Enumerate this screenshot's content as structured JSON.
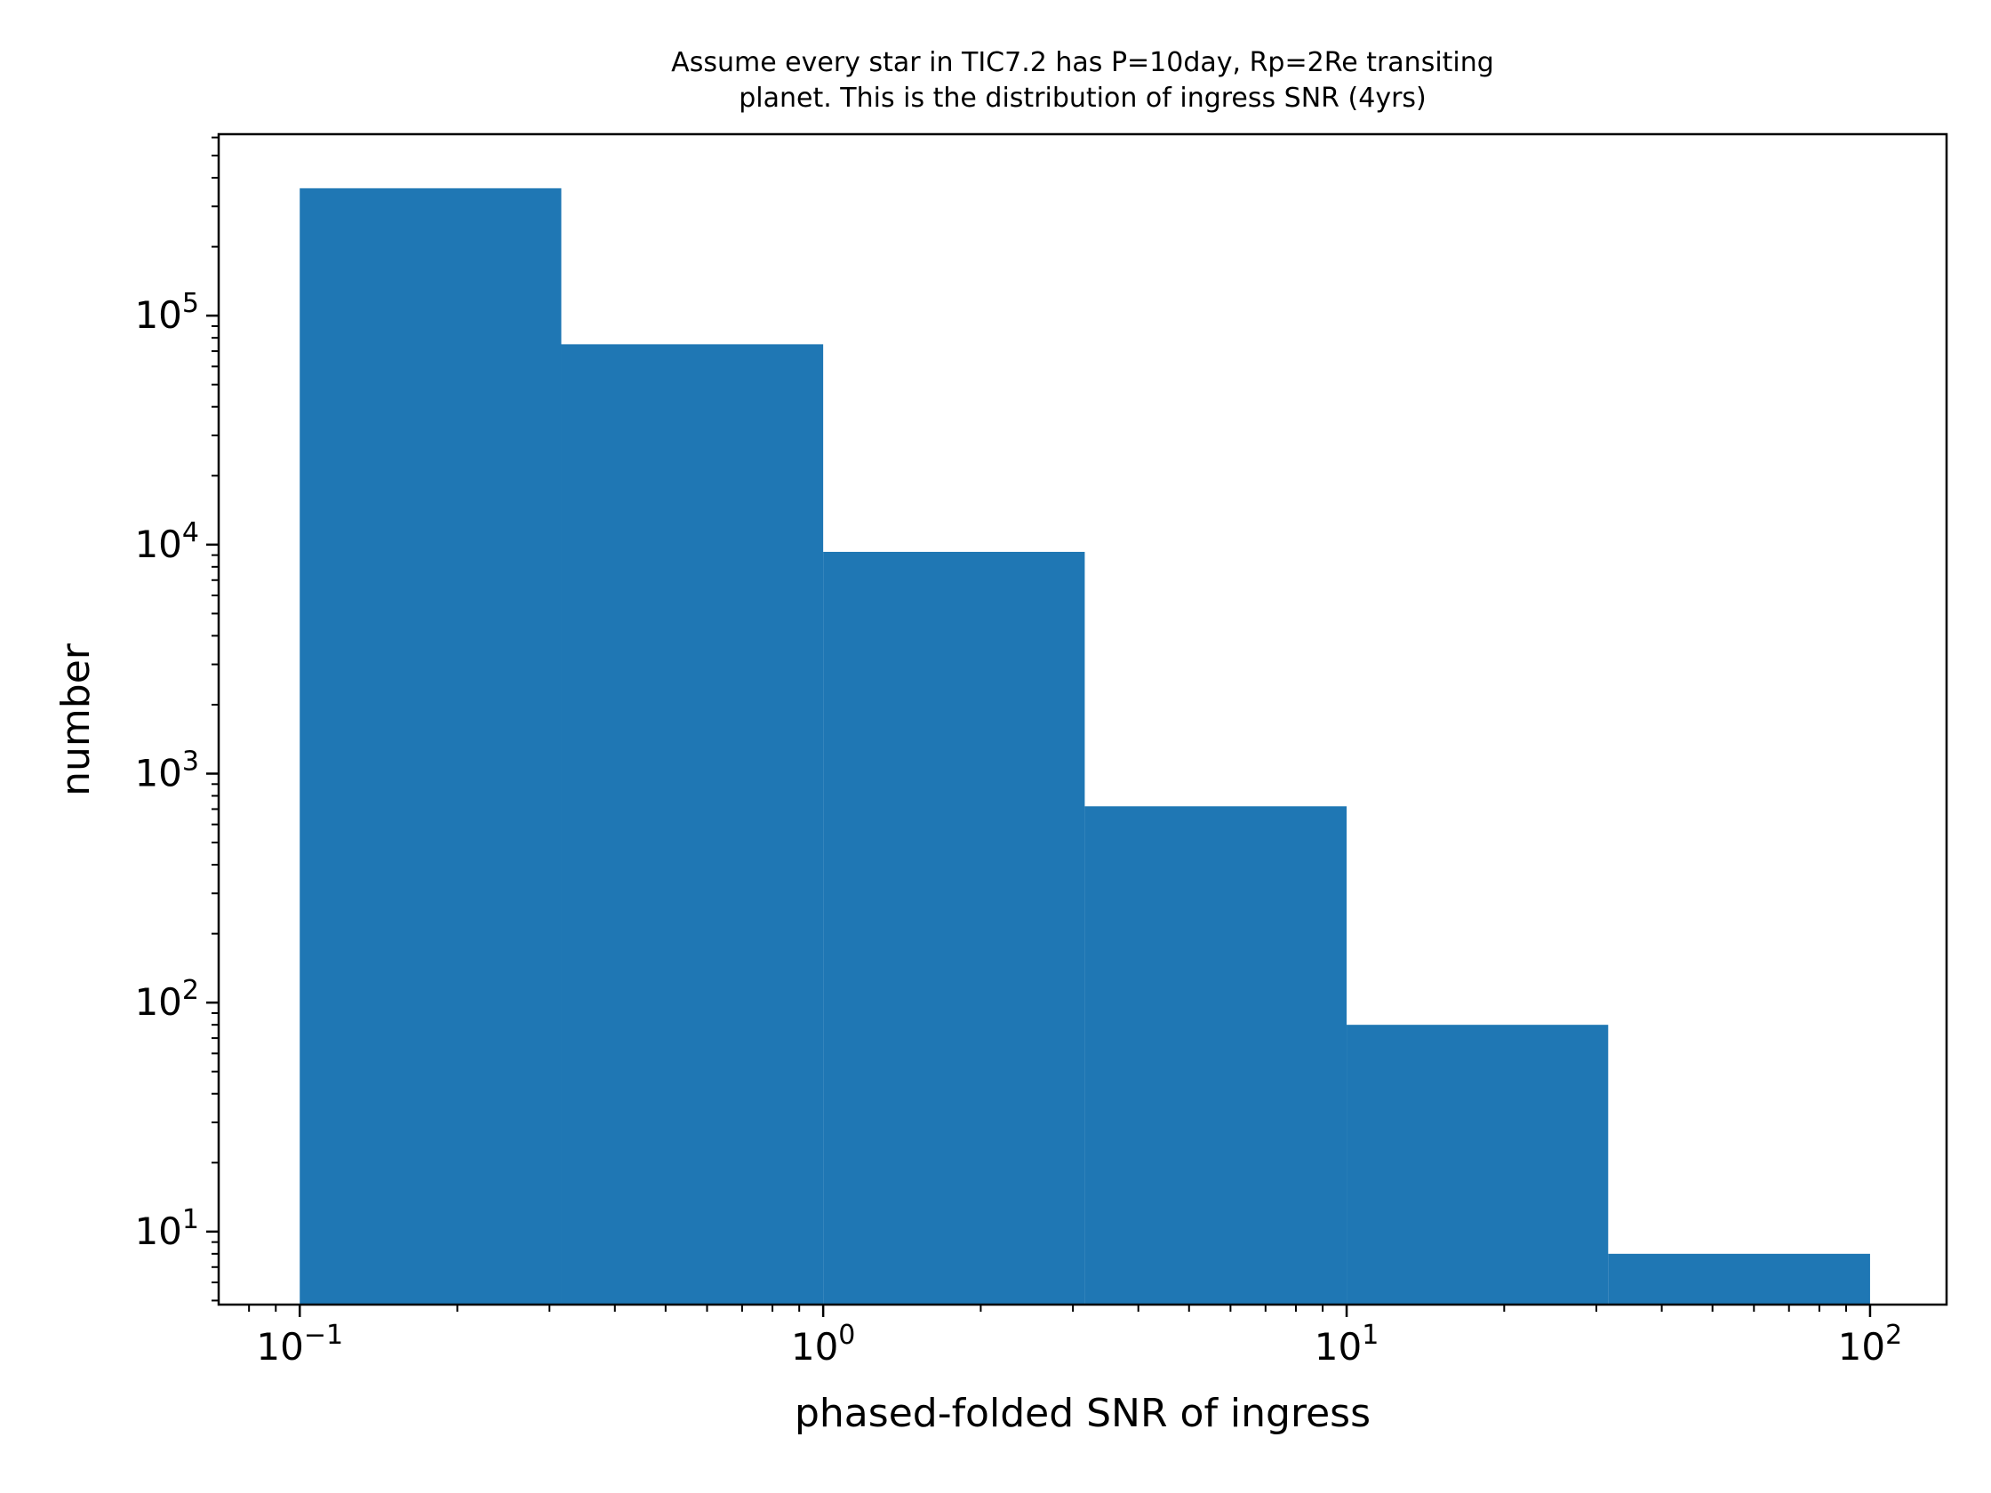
{
  "chart_data": {
    "type": "bar",
    "title_lines": [
      "Assume every star in TIC7.2 has P=10day, Rp=2Re transiting",
      "planet. This is the distribution of ingress SNR (4yrs)"
    ],
    "xlabel": "phased-folded SNR of ingress",
    "ylabel": "number",
    "x_scale": "log",
    "y_scale": "log",
    "xlim": [
      0.07,
      140
    ],
    "ylim": [
      4.8,
      620000
    ],
    "grid": false,
    "bar_color": "#1f77b4",
    "x_ticks": [
      {
        "value": 0.1,
        "base": "10",
        "exp": "−1"
      },
      {
        "value": 1,
        "base": "10",
        "exp": "0"
      },
      {
        "value": 10,
        "base": "10",
        "exp": "1"
      },
      {
        "value": 100,
        "base": "10",
        "exp": "2"
      }
    ],
    "y_ticks": [
      {
        "value": 10,
        "base": "10",
        "exp": "1"
      },
      {
        "value": 100,
        "base": "10",
        "exp": "2"
      },
      {
        "value": 1000,
        "base": "10",
        "exp": "3"
      },
      {
        "value": 10000,
        "base": "10",
        "exp": "4"
      },
      {
        "value": 100000,
        "base": "10",
        "exp": "5"
      }
    ],
    "bins": [
      {
        "x0": 0.1,
        "x1": 0.316,
        "count": 360000
      },
      {
        "x0": 0.316,
        "x1": 1.0,
        "count": 75000
      },
      {
        "x0": 1.0,
        "x1": 3.16,
        "count": 9300
      },
      {
        "x0": 3.16,
        "x1": 10.0,
        "count": 720
      },
      {
        "x0": 10.0,
        "x1": 31.6,
        "count": 80
      },
      {
        "x0": 31.6,
        "x1": 100.0,
        "count": 8
      }
    ]
  }
}
